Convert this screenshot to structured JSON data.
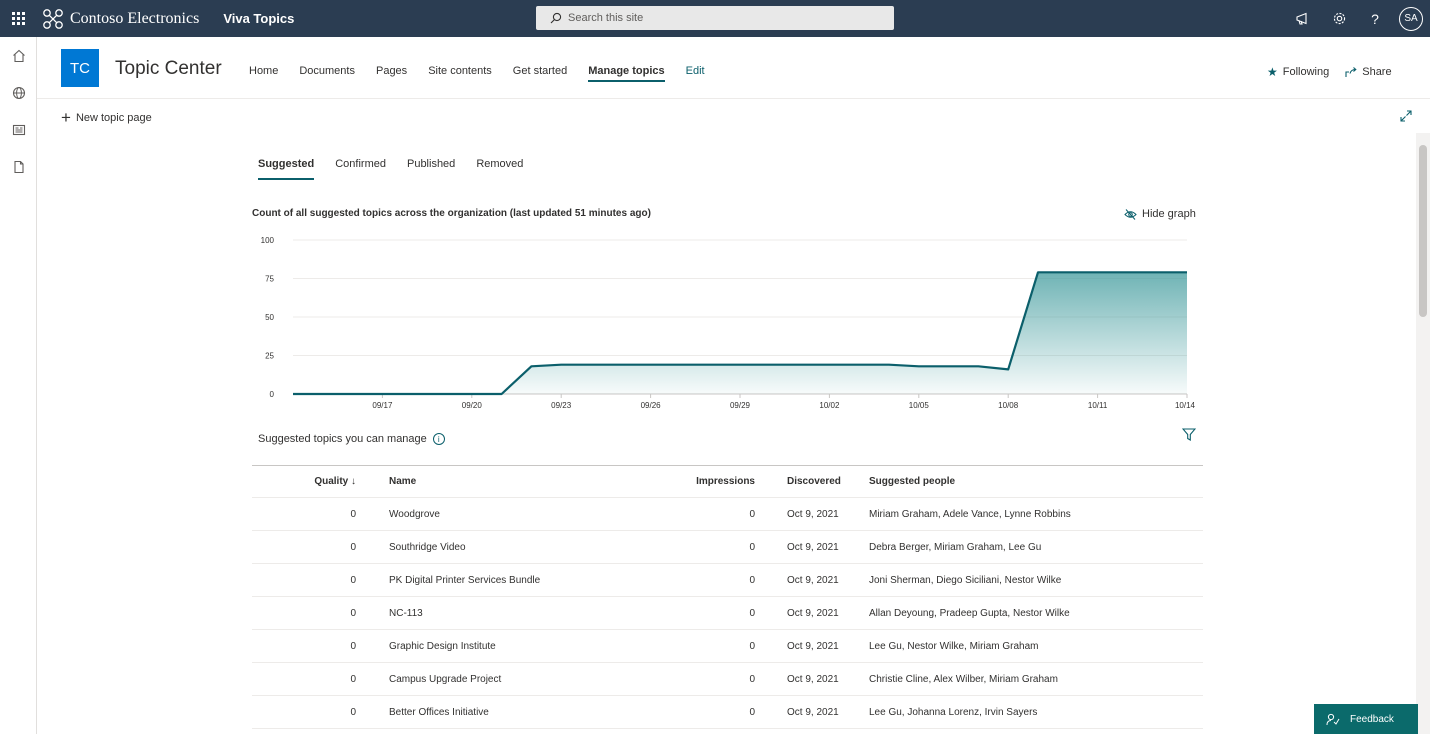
{
  "suitebar": {
    "brand": "Contoso Electronics",
    "app": "Viva Topics",
    "search_placeholder": "Search this site",
    "avatar_initials": "SA",
    "help_label": "?"
  },
  "site": {
    "logo_initials": "TC",
    "title": "Topic Center",
    "nav": [
      "Home",
      "Documents",
      "Pages",
      "Site contents",
      "Get started",
      "Manage topics"
    ],
    "edit_label": "Edit",
    "following_label": "Following",
    "share_label": "Share"
  },
  "command": {
    "new_topic_label": "New topic page"
  },
  "tabs": [
    "Suggested",
    "Confirmed",
    "Published",
    "Removed"
  ],
  "chart_header": {
    "title": "Count of all suggested topics across the organization (last updated 51 minutes ago)",
    "hide_graph_label": "Hide graph"
  },
  "chart_data": {
    "type": "area",
    "title": "Count of all suggested topics across the organization (last updated 51 minutes ago)",
    "xlabel": "",
    "ylabel": "",
    "ylim": [
      0,
      100
    ],
    "yticks": [
      "0",
      "25",
      "50",
      "75",
      "100"
    ],
    "xticks": [
      "09/17",
      "09/20",
      "09/23",
      "09/26",
      "09/29",
      "10/02",
      "10/05",
      "10/08",
      "10/11",
      "10/14"
    ],
    "x": [
      "09/14",
      "09/15",
      "09/16",
      "09/17",
      "09/18",
      "09/19",
      "09/20",
      "09/21",
      "09/22",
      "09/23",
      "09/24",
      "09/25",
      "09/26",
      "09/27",
      "09/28",
      "09/29",
      "09/30",
      "10/01",
      "10/02",
      "10/03",
      "10/04",
      "10/05",
      "10/06",
      "10/07",
      "10/08",
      "10/09",
      "10/10",
      "10/11",
      "10/12",
      "10/13",
      "10/14"
    ],
    "series": [
      {
        "values": [
          0,
          0,
          0,
          0,
          0,
          0,
          0,
          0,
          18,
          19,
          19,
          19,
          19,
          19,
          19,
          19,
          19,
          19,
          19,
          19,
          19,
          18,
          18,
          18,
          16,
          79,
          79,
          79,
          79,
          79,
          79
        ]
      }
    ],
    "grid": true,
    "color": "#0b5f6b"
  },
  "table": {
    "caption": "Suggested topics you can manage",
    "columns": {
      "quality": "Quality ↓",
      "name": "Name",
      "impressions": "Impressions",
      "discovered": "Discovered",
      "people": "Suggested people"
    },
    "rows": [
      {
        "quality": "0",
        "name": "Woodgrove",
        "impressions": "0",
        "discovered": "Oct 9, 2021",
        "people": "Miriam Graham,  Adele Vance,  Lynne Robbins"
      },
      {
        "quality": "0",
        "name": "Southridge Video",
        "impressions": "0",
        "discovered": "Oct 9, 2021",
        "people": "Debra Berger,  Miriam Graham,  Lee Gu"
      },
      {
        "quality": "0",
        "name": "PK Digital Printer Services Bundle",
        "impressions": "0",
        "discovered": "Oct 9, 2021",
        "people": "Joni Sherman,  Diego Siciliani,  Nestor Wilke"
      },
      {
        "quality": "0",
        "name": "NC-113",
        "impressions": "0",
        "discovered": "Oct 9, 2021",
        "people": "Allan Deyoung,  Pradeep Gupta,  Nestor Wilke"
      },
      {
        "quality": "0",
        "name": "Graphic Design Institute",
        "impressions": "0",
        "discovered": "Oct 9, 2021",
        "people": "Lee Gu,  Nestor Wilke,  Miriam Graham"
      },
      {
        "quality": "0",
        "name": "Campus Upgrade Project",
        "impressions": "0",
        "discovered": "Oct 9, 2021",
        "people": "Christie Cline,  Alex Wilber,  Miriam Graham"
      },
      {
        "quality": "0",
        "name": "Better Offices Initiative",
        "impressions": "0",
        "discovered": "Oct 9, 2021",
        "people": "Lee Gu,  Johanna Lorenz,  Irvin Sayers"
      }
    ]
  },
  "feedback_label": "Feedback",
  "icons": {
    "app_launcher": "waffle-icon",
    "search": "search-icon",
    "megaphone": "megaphone-icon",
    "settings": "gear-icon",
    "rail": [
      "home-icon",
      "globe-icon",
      "news-icon",
      "document-icon"
    ],
    "following": "star-icon",
    "share": "share-icon",
    "expand": "expand-icon",
    "hide_graph": "eye-off-icon",
    "filter": "filter-icon",
    "info": "info-icon",
    "feedback": "feedback-icon"
  },
  "colors": {
    "suitebar": "#2b3d52",
    "accent": "#0b5f6b",
    "site_logo": "#0078d4",
    "feedback": "#0b6a6b"
  }
}
